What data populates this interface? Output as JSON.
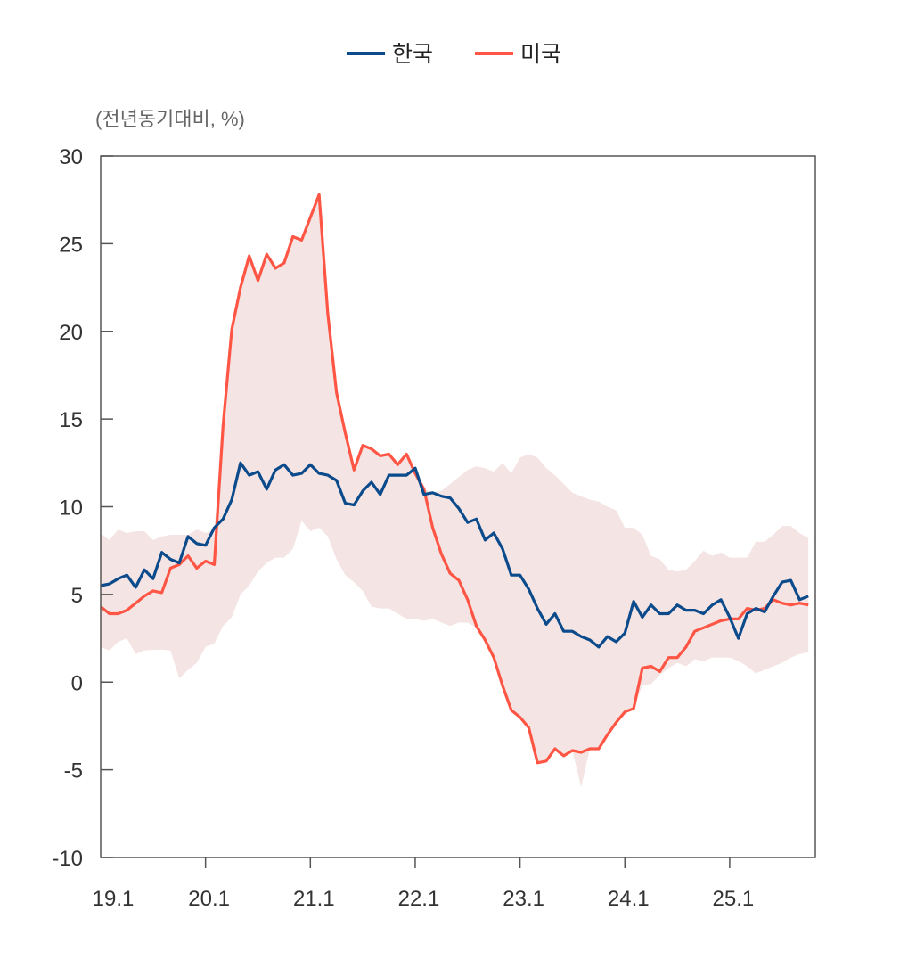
{
  "chart_data": {
    "type": "line",
    "title": "",
    "ylabel": "(전년동기대비, %)",
    "xlabel": "",
    "ylim": [
      -10,
      30
    ],
    "yticks": [
      -10,
      -5,
      0,
      5,
      10,
      15,
      20,
      25,
      30
    ],
    "x_start": "19.1",
    "x_frequency": "monthly",
    "xtick_labels": [
      "19.1",
      "20.1",
      "21.1",
      "22.1",
      "23.1",
      "24.1",
      "25.1"
    ],
    "xtick_indices": [
      0,
      12,
      24,
      36,
      48,
      60,
      72
    ],
    "grid": false,
    "legend_position": "top-center",
    "series": [
      {
        "name": "한국",
        "color": "#0B4A8B",
        "values": [
          5.5,
          5.6,
          5.9,
          6.1,
          5.4,
          6.4,
          5.9,
          7.4,
          7.0,
          6.8,
          8.3,
          7.9,
          7.8,
          8.8,
          9.3,
          10.4,
          12.5,
          11.8,
          12.0,
          11.0,
          12.1,
          12.4,
          11.8,
          11.9,
          12.4,
          11.9,
          11.8,
          11.5,
          10.2,
          10.1,
          10.9,
          11.4,
          10.7,
          11.8,
          11.8,
          11.8,
          12.2,
          10.7,
          10.8,
          10.6,
          10.5,
          9.9,
          9.1,
          9.3,
          8.1,
          8.5,
          7.6,
          6.1,
          6.1,
          5.3,
          4.2,
          3.3,
          3.9,
          2.9,
          2.9,
          2.6,
          2.4,
          2.0,
          2.6,
          2.3,
          2.8,
          4.6,
          3.7,
          4.4,
          3.9,
          3.9,
          4.4,
          4.1,
          4.1,
          3.9,
          4.4,
          4.7,
          3.7,
          2.5,
          3.9,
          4.2,
          4.0,
          4.9,
          5.7,
          5.8,
          4.7,
          4.9
        ]
      },
      {
        "name": "미국",
        "color": "#FF5544",
        "values": [
          4.3,
          3.9,
          3.9,
          4.1,
          4.5,
          4.9,
          5.2,
          5.1,
          6.5,
          6.7,
          7.2,
          6.5,
          6.9,
          6.7,
          14.6,
          20.1,
          22.5,
          24.3,
          22.9,
          24.4,
          23.6,
          23.9,
          25.4,
          25.2,
          26.5,
          27.8,
          21.0,
          16.5,
          14.2,
          12.1,
          13.5,
          13.3,
          12.9,
          13.0,
          12.4,
          13.0,
          11.9,
          11.0,
          8.8,
          7.3,
          6.2,
          5.8,
          4.7,
          3.2,
          2.4,
          1.4,
          -0.2,
          -1.6,
          -2.0,
          -2.6,
          -4.6,
          -4.5,
          -3.8,
          -4.2,
          -3.9,
          -4.0,
          -3.8,
          -3.8,
          -3.0,
          -2.3,
          -1.7,
          -1.5,
          0.8,
          0.9,
          0.6,
          1.4,
          1.4,
          2.0,
          2.9,
          3.1,
          3.3,
          3.5,
          3.6,
          3.6,
          4.2,
          4.1,
          4.2,
          4.7,
          4.5,
          4.4,
          4.5,
          4.4
        ]
      }
    ],
    "range_band": {
      "color": "#F5E4E4",
      "upper": [
        8.5,
        8.1,
        8.7,
        8.5,
        8.6,
        8.6,
        8.1,
        8.3,
        8.4,
        8.4,
        8.4,
        8.7,
        8.5,
        8.7,
        14.6,
        20.1,
        22.5,
        24.3,
        22.9,
        24.4,
        23.6,
        23.9,
        25.4,
        25.2,
        26.5,
        27.8,
        21.0,
        16.5,
        14.2,
        12.1,
        13.5,
        13.3,
        12.9,
        13.0,
        12.4,
        13.0,
        11.9,
        11.0,
        10.8,
        10.9,
        11.3,
        11.7,
        12.1,
        12.3,
        12.2,
        12.0,
        12.5,
        11.9,
        12.8,
        13.0,
        12.8,
        12.2,
        11.8,
        11.3,
        10.8,
        10.6,
        10.4,
        10.3,
        10.0,
        9.8,
        8.8,
        8.8,
        8.4,
        7.2,
        7.0,
        6.4,
        6.3,
        6.4,
        6.9,
        7.5,
        7.2,
        7.4,
        7.1,
        7.1,
        7.1,
        8.0,
        8.0,
        8.4,
        8.9,
        8.9,
        8.5,
        8.2
      ],
      "lower": [
        2.0,
        1.8,
        2.3,
        2.5,
        1.6,
        1.8,
        1.85,
        1.85,
        1.8,
        0.2,
        0.7,
        1.1,
        2.0,
        2.2,
        3.2,
        3.7,
        5.0,
        5.5,
        6.3,
        6.8,
        7.1,
        7.1,
        7.6,
        9.2,
        8.6,
        8.8,
        8.3,
        7.0,
        6.1,
        5.7,
        5.2,
        4.3,
        4.2,
        4.2,
        3.9,
        3.6,
        3.6,
        3.5,
        3.6,
        3.4,
        3.2,
        3.4,
        3.4,
        3.1,
        2.4,
        1.4,
        -0.2,
        -1.6,
        -2.0,
        -2.6,
        -4.6,
        -4.5,
        -3.8,
        -4.2,
        -3.9,
        -6.0,
        -3.8,
        -3.8,
        -3.0,
        -2.3,
        -1.7,
        -1.5,
        -0.2,
        -0.1,
        0.4,
        0.8,
        1.1,
        0.9,
        1.3,
        1.2,
        1.4,
        1.4,
        1.4,
        1.2,
        0.9,
        0.5,
        0.7,
        0.9,
        1.1,
        1.4,
        1.6,
        1.7
      ]
    }
  }
}
